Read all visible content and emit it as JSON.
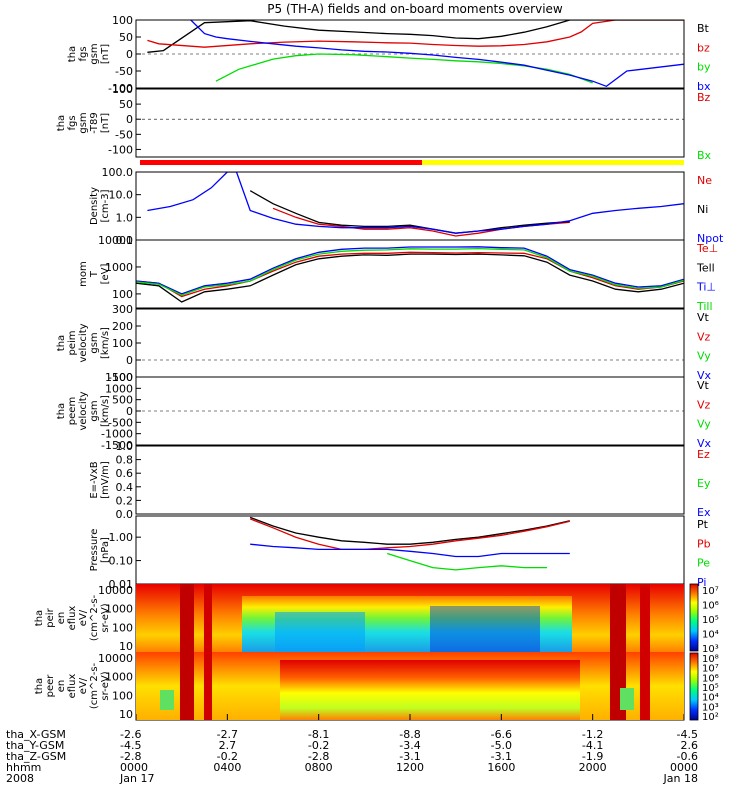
{
  "figure": {
    "title": "P5 (TH-A) fields and on-board moments overview"
  },
  "colors": {
    "black": "#000000",
    "red": "#e00000",
    "green": "#00dd00",
    "blue": "#0000ff",
    "yellow": "#ffff00",
    "white": "#ffffff"
  },
  "chart_data": [
    {
      "type": "line",
      "name": "fgs",
      "ylabel": [
        "tha",
        "fgs",
        "gsm",
        "[nT]"
      ],
      "ylim": [
        -100,
        100
      ],
      "yticks": [
        100,
        50,
        0,
        -50,
        -100
      ],
      "series": [
        {
          "name": "Bt",
          "color": "#000000",
          "x": [
            0.5,
            1.2,
            3,
            5,
            6.5,
            8,
            9.5,
            11,
            12,
            13,
            14,
            15,
            16,
            17,
            18,
            19,
            20,
            20.5,
            21,
            22,
            24
          ],
          "y": [
            5,
            10,
            92,
            98,
            82,
            70,
            65,
            60,
            58,
            54,
            47,
            45,
            52,
            64,
            80,
            100,
            100,
            100,
            100,
            100,
            100
          ]
        },
        {
          "name": "bz",
          "color": "#e00000",
          "x": [
            0.5,
            1,
            3,
            5,
            6.5,
            8,
            9.5,
            11,
            12,
            13,
            14,
            15,
            16,
            17,
            18,
            19,
            19.5,
            20,
            21,
            22,
            24
          ],
          "y": [
            40,
            30,
            20,
            30,
            35,
            38,
            36,
            33,
            32,
            28,
            25,
            23,
            24,
            28,
            36,
            50,
            65,
            90,
            100,
            100,
            100
          ]
        },
        {
          "name": "by",
          "color": "#00dd00",
          "x": [
            3.5,
            4.5,
            6,
            7,
            8,
            9.5,
            11,
            12,
            13,
            14,
            15,
            16,
            17,
            18,
            19,
            20
          ],
          "y": [
            -80,
            -45,
            -15,
            -5,
            0,
            -2,
            -8,
            -12,
            -16,
            -20,
            -23,
            -28,
            -35,
            -45,
            -60,
            -85
          ]
        },
        {
          "name": "bx",
          "color": "#0000ff",
          "x": [
            2.4,
            3,
            3.5,
            4,
            5,
            6,
            7,
            8,
            9,
            10,
            11,
            12,
            13,
            14,
            15,
            16,
            17,
            18,
            19,
            20,
            20.6,
            21.5,
            24
          ],
          "y": [
            100,
            60,
            50,
            45,
            37,
            30,
            23,
            18,
            12,
            8,
            6,
            2,
            -3,
            -10,
            -16,
            -24,
            -33,
            -48,
            -62,
            -80,
            -95,
            -50,
            -30
          ]
        }
      ]
    },
    {
      "type": "line",
      "name": "fgs-t89",
      "ylabel": [
        "tha",
        "fgs",
        "gsm",
        "-T89",
        "[nT]"
      ],
      "ylim": [
        -125,
        100
      ],
      "yticks": [
        100,
        50,
        0,
        -50,
        -100
      ],
      "series": [
        {
          "name": "Bz",
          "color": "#e00000"
        },
        {
          "name": "Bx",
          "color": "#00dd00"
        }
      ]
    },
    {
      "type": "line",
      "name": "density",
      "yscale": "log",
      "ylabel": [
        "Density",
        "[cm-3]"
      ],
      "ylim": [
        0.1,
        100
      ],
      "yticks": [
        "100.0",
        "10.0",
        "1.0",
        "0.1"
      ],
      "ytick_values": [
        100,
        10,
        1,
        0.1
      ],
      "series": [
        {
          "name": "Ne",
          "color": "#e00000",
          "x": [
            6,
            7,
            8,
            9,
            10,
            11,
            12,
            13,
            14,
            15,
            16,
            17,
            18,
            19
          ],
          "y": [
            2.5,
            1,
            0.5,
            0.4,
            0.3,
            0.3,
            0.35,
            0.25,
            0.15,
            0.2,
            0.3,
            0.4,
            0.5,
            0.6
          ]
        },
        {
          "name": "Ni",
          "color": "#000000",
          "x": [
            5,
            6,
            7,
            8,
            9,
            10,
            11,
            12,
            13,
            14,
            15,
            16,
            17,
            18,
            19
          ],
          "y": [
            15,
            4,
            1.5,
            0.6,
            0.45,
            0.4,
            0.4,
            0.45,
            0.3,
            0.2,
            0.25,
            0.35,
            0.45,
            0.55,
            0.65
          ]
        },
        {
          "name": "Npot",
          "color": "#0000ff",
          "x": [
            0.5,
            1.5,
            2.5,
            3.3,
            4,
            4.4,
            5,
            6,
            7,
            8,
            9,
            10,
            11,
            12,
            13,
            14,
            15,
            16,
            17,
            18,
            19,
            20,
            21,
            22,
            23,
            24
          ],
          "y": [
            2,
            3,
            6,
            20,
            100,
            100,
            2,
            0.9,
            0.5,
            0.4,
            0.35,
            0.35,
            0.35,
            0.4,
            0.3,
            0.2,
            0.25,
            0.3,
            0.4,
            0.5,
            0.7,
            1.5,
            2,
            2.5,
            3,
            4
          ]
        }
      ]
    },
    {
      "type": "line",
      "name": "temperature",
      "yscale": "log",
      "ylabel": [
        "mom",
        "T",
        "[eV]"
      ],
      "ylim": [
        30,
        10000
      ],
      "yticks": [
        "10000",
        "1000",
        "100"
      ],
      "ytick_values": [
        10000,
        1000,
        100
      ],
      "series": [
        {
          "name": "Te⊥",
          "color": "#e00000",
          "x": [
            0,
            1,
            2,
            3,
            4,
            5,
            6,
            7,
            8,
            9,
            10,
            11,
            12,
            13,
            14,
            15,
            16,
            17,
            18,
            19,
            20,
            21,
            22,
            23,
            24
          ],
          "y": [
            300,
            250,
            80,
            150,
            200,
            300,
            700,
            1500,
            2500,
            3000,
            3200,
            3200,
            3500,
            3400,
            3300,
            3400,
            3300,
            3200,
            2000,
            700,
            400,
            200,
            150,
            180,
            300
          ]
        },
        {
          "name": "Tell",
          "color": "#000000",
          "x": [
            0,
            1,
            2,
            3,
            4,
            5,
            6,
            7,
            8,
            9,
            10,
            11,
            12,
            13,
            14,
            15,
            16,
            17,
            18,
            19,
            20,
            21,
            22,
            23,
            24
          ],
          "y": [
            250,
            200,
            50,
            120,
            150,
            200,
            500,
            1200,
            2000,
            2500,
            2800,
            2700,
            3000,
            3000,
            2900,
            3000,
            2800,
            2600,
            1500,
            500,
            300,
            150,
            120,
            150,
            250
          ]
        },
        {
          "name": "Ti⊥",
          "color": "#0000ff",
          "x": [
            0,
            1,
            2,
            3,
            4,
            5,
            6,
            7,
            8,
            9,
            10,
            11,
            12,
            13,
            14,
            15,
            16,
            17,
            18,
            19,
            20,
            21,
            22,
            23,
            24
          ],
          "y": [
            300,
            250,
            100,
            200,
            250,
            350,
            900,
            2000,
            3500,
            4500,
            5000,
            5000,
            5500,
            5500,
            5500,
            5600,
            5200,
            5000,
            2500,
            800,
            500,
            250,
            180,
            200,
            350
          ]
        },
        {
          "name": "Till",
          "color": "#00dd00",
          "x": [
            0,
            1,
            2,
            3,
            4,
            5,
            6,
            7,
            8,
            9,
            10,
            11,
            12,
            13,
            14,
            15,
            16,
            17,
            18,
            19,
            20,
            21,
            22,
            23,
            24
          ],
          "y": [
            280,
            230,
            90,
            180,
            220,
            300,
            800,
            1800,
            3000,
            3800,
            4200,
            4300,
            4700,
            4600,
            4600,
            4800,
            4500,
            4300,
            2200,
            700,
            450,
            220,
            160,
            180,
            320
          ]
        }
      ]
    },
    {
      "type": "line",
      "name": "peim-velocity",
      "ylabel": [
        "tha",
        "peim",
        "velocity",
        "gsm",
        "[km/s]"
      ],
      "ylim": [
        -100,
        300
      ],
      "yticks": [
        300,
        200,
        100,
        0,
        -100
      ],
      "series": [
        {
          "name": "Vt",
          "color": "#000000"
        },
        {
          "name": "Vz",
          "color": "#e00000"
        },
        {
          "name": "Vy",
          "color": "#00dd00"
        },
        {
          "name": "Vx",
          "color": "#0000ff"
        }
      ]
    },
    {
      "type": "line",
      "name": "peem-velocity",
      "ylabel": [
        "tha",
        "peem",
        "velocity",
        "gsm",
        "[km/s]"
      ],
      "ylim": [
        -1500,
        1500
      ],
      "yticks": [
        1500,
        1000,
        500,
        0,
        -500,
        -1000,
        -1500
      ],
      "series": [
        {
          "name": "Vt",
          "color": "#000000"
        },
        {
          "name": "Vz",
          "color": "#e00000"
        },
        {
          "name": "Vy",
          "color": "#00dd00"
        },
        {
          "name": "Vx",
          "color": "#0000ff"
        }
      ]
    },
    {
      "type": "line",
      "name": "e-vxb",
      "ylabel": [
        "E=-VxB",
        "[mV/m]"
      ],
      "ylim": [
        0,
        1
      ],
      "yticks": [
        "1.0",
        "0.8",
        "0.6",
        "0.4",
        "0.2",
        "0.0"
      ],
      "ytick_values": [
        1,
        0.8,
        0.6,
        0.4,
        0.2,
        0
      ],
      "series": [
        {
          "name": "Ez",
          "color": "#e00000"
        },
        {
          "name": "Ey",
          "color": "#00dd00"
        },
        {
          "name": "Ex",
          "color": "#0000ff"
        }
      ]
    },
    {
      "type": "line",
      "name": "pressure",
      "yscale": "log",
      "ylabel": [
        "Pressure",
        "[nPa]"
      ],
      "ylim": [
        0.01,
        8
      ],
      "yticks": [
        "1.00",
        "0.10",
        "0.01"
      ],
      "ytick_values": [
        1,
        0.1,
        0.01
      ],
      "series": [
        {
          "name": "Pt",
          "color": "#000000",
          "x": [
            5,
            6,
            7,
            8,
            9,
            10,
            11,
            12,
            13,
            14,
            15,
            16,
            17,
            18,
            19
          ],
          "y": [
            7,
            3,
            1.5,
            1,
            0.7,
            0.6,
            0.5,
            0.5,
            0.6,
            0.8,
            1,
            1.4,
            2,
            3,
            5
          ]
        },
        {
          "name": "Pb",
          "color": "#e00000",
          "x": [
            5,
            6,
            7,
            8,
            9,
            10,
            11,
            12,
            13,
            14,
            15,
            16,
            17,
            18,
            19
          ],
          "y": [
            6,
            2.5,
            1,
            0.5,
            0.3,
            0.3,
            0.35,
            0.4,
            0.5,
            0.7,
            0.9,
            1.2,
            1.8,
            2.8,
            4.8
          ]
        },
        {
          "name": "Pe",
          "color": "#00dd00",
          "x": [
            11,
            12,
            13,
            14,
            15,
            16,
            17,
            18
          ],
          "y": [
            0.2,
            0.1,
            0.05,
            0.04,
            0.05,
            0.06,
            0.05,
            0.05
          ]
        },
        {
          "name": "Pi",
          "color": "#0000ff",
          "x": [
            5,
            6,
            7,
            8,
            9,
            10,
            11,
            12,
            13,
            14,
            15,
            16,
            17,
            18,
            19
          ],
          "y": [
            0.5,
            0.4,
            0.35,
            0.3,
            0.3,
            0.3,
            0.3,
            0.25,
            0.2,
            0.15,
            0.15,
            0.2,
            0.2,
            0.2,
            0.2
          ]
        }
      ]
    },
    {
      "type": "heatmap",
      "name": "peir-spectrogram",
      "ylabel": [
        "tha",
        "peir",
        "en",
        "eflux",
        "eV/",
        "(cm^2-s-",
        "sr-eV)"
      ],
      "yticks": [
        "10000",
        "1000",
        "100",
        "10"
      ],
      "colorbar_ticks": [
        "10⁷",
        "10⁶",
        "10⁵",
        "10⁴",
        "10³"
      ]
    },
    {
      "type": "heatmap",
      "name": "peer-spectrogram",
      "ylabel": [
        "tha",
        "peer",
        "en",
        "eflux",
        "eV/",
        "(cm^2-s-",
        "sr-eV)"
      ],
      "yticks": [
        "10000",
        "1000",
        "100",
        "10"
      ],
      "colorbar_ticks": [
        "10⁸",
        "10⁷",
        "10⁶",
        "10⁵",
        "10⁴",
        "10³",
        "10²"
      ]
    }
  ],
  "x_axis": {
    "row_labels": [
      "tha_X-GSM",
      "tha_Y-GSM",
      "tha_Z-GSM",
      "hhmm",
      "2008"
    ],
    "ticks": [
      {
        "hour": 0,
        "x": "-2.6",
        "y": "-4.5",
        "z": "-2.8",
        "hhmm": "0000",
        "date": "Jan 17"
      },
      {
        "hour": 4,
        "x": "-2.7",
        "y": "2.7",
        "z": "-0.2",
        "hhmm": "0400",
        "date": ""
      },
      {
        "hour": 8,
        "x": "-8.1",
        "y": "-0.2",
        "z": "-2.8",
        "hhmm": "0800",
        "date": ""
      },
      {
        "hour": 12,
        "x": "-8.8",
        "y": "-3.4",
        "z": "-3.1",
        "hhmm": "1200",
        "date": ""
      },
      {
        "hour": 16,
        "x": "-6.6",
        "y": "-5.0",
        "z": "-3.1",
        "hhmm": "1600",
        "date": ""
      },
      {
        "hour": 20,
        "x": "-1.2",
        "y": "-4.1",
        "z": "-1.9",
        "hhmm": "2000",
        "date": ""
      },
      {
        "hour": 24,
        "x": "-4.5",
        "y": "2.6",
        "z": "-0.6",
        "hhmm": "0000",
        "date": "Jan 18"
      }
    ]
  }
}
